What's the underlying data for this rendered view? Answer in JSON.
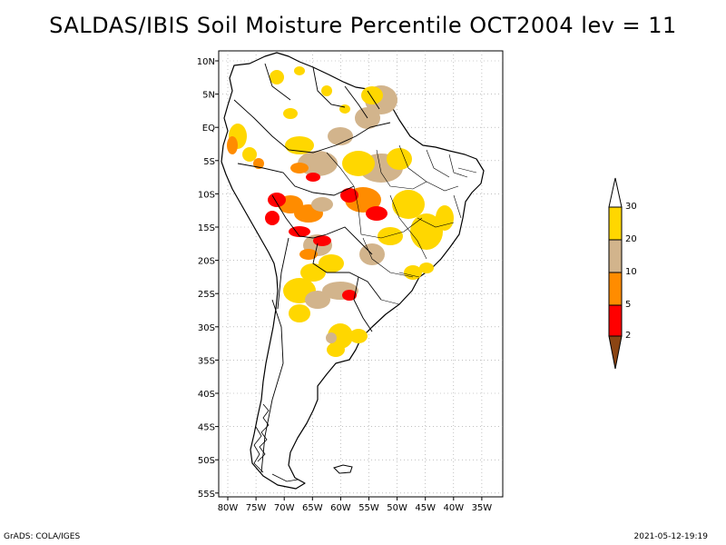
{
  "title": "SALDAS/IBIS Soil Moisture Percentile OCT2004 lev = 11",
  "lat_labels": [
    "10N",
    "5N",
    "EQ",
    "5S",
    "10S",
    "15S",
    "20S",
    "25S",
    "30S",
    "35S",
    "40S",
    "45S",
    "50S",
    "55S"
  ],
  "lon_labels": [
    "80W",
    "75W",
    "70W",
    "65W",
    "60W",
    "55W",
    "50W",
    "45W",
    "40W",
    "35W"
  ],
  "legend": {
    "labels": [
      "30",
      "20",
      "10",
      "5",
      "2"
    ],
    "colors": {
      "above30": "#ffffff",
      "b20_30": "#ffd700",
      "b10_20": "#d2b48c",
      "b5_10": "#ff8c00",
      "b2_5": "#ff0000",
      "below2": "#8b4513"
    }
  },
  "footer": {
    "left": "GrADS: COLA/IGES",
    "right": "2021-05-12-19:19"
  }
}
